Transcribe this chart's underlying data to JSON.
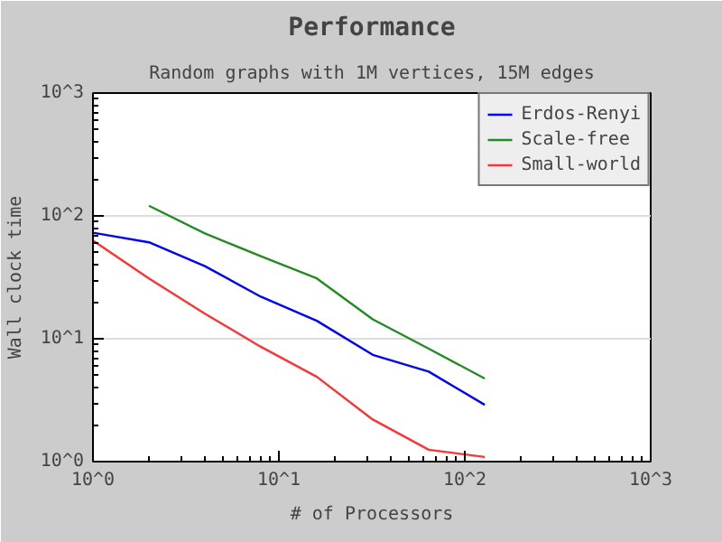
{
  "chart_data": {
    "type": "line",
    "title": "Performance",
    "subtitle": "Random graphs with 1M vertices, 15M edges",
    "xlabel": "# of Processors",
    "ylabel": "Wall clock time",
    "log": "xy",
    "grid": "y",
    "legend": "top right",
    "xlim": [
      1,
      1000
    ],
    "ylim": [
      1,
      1000
    ],
    "xticks": [
      {
        "value": 1,
        "label": "10^0"
      },
      {
        "value": 10,
        "label": "10^1"
      },
      {
        "value": 100,
        "label": "10^2"
      },
      {
        "value": 1000,
        "label": "10^3"
      }
    ],
    "yticks": [
      {
        "value": 1,
        "label": "10^0"
      },
      {
        "value": 10,
        "label": "10^1"
      },
      {
        "value": 100,
        "label": "10^2"
      },
      {
        "value": 1000,
        "label": "10^3"
      }
    ],
    "x": [
      1,
      2,
      4,
      8,
      16,
      32,
      64,
      128
    ],
    "series": [
      {
        "name": "Erdos-Renyi",
        "color": "#0000ff",
        "values": [
          73,
          61,
          39,
          22,
          14,
          7.4,
          5.4,
          2.9
        ]
      },
      {
        "name": "Scale-free",
        "color": "#228b22",
        "values": [
          null,
          121,
          72,
          47,
          31,
          14.4,
          8.3,
          4.75
        ]
      },
      {
        "name": "Small-world",
        "color": "#ff3333",
        "values": [
          63,
          31,
          16,
          8.6,
          4.9,
          2.2,
          1.25,
          1.09
        ]
      }
    ]
  }
}
